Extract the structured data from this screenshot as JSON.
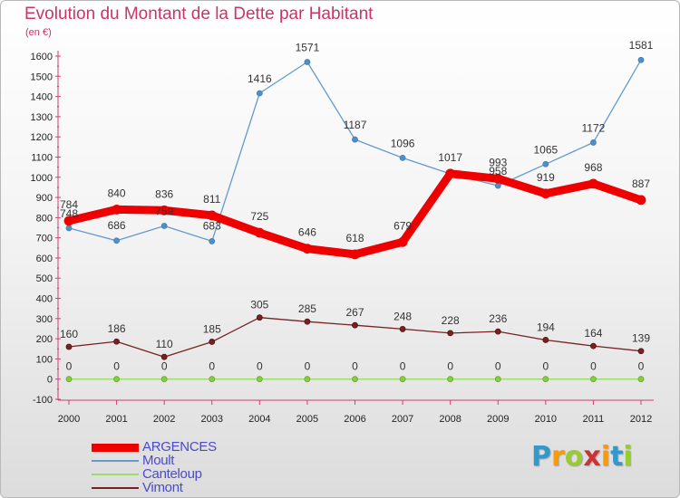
{
  "title": "Evolution du Montant de la Dette par Habitant",
  "unit_label": "(en €)",
  "logo": {
    "text": "Proxiti",
    "letters": [
      {
        "ch": "P",
        "color": "#3399cc"
      },
      {
        "ch": "r",
        "color": "#ff9900"
      },
      {
        "ch": "o",
        "color": "#99cc33"
      },
      {
        "ch": "x",
        "color": "#cc3333"
      },
      {
        "ch": "i",
        "color": "#ff9900"
      },
      {
        "ch": "t",
        "color": "#3399cc"
      },
      {
        "ch": "i",
        "color": "#99cc33"
      }
    ]
  },
  "chart_data": {
    "type": "line",
    "title": "Evolution du Montant de la Dette par Habitant",
    "ylabel": "(en €)",
    "xlabel": "",
    "x": [
      "2000",
      "2001",
      "2002",
      "2003",
      "2004",
      "2005",
      "2006",
      "2007",
      "2008",
      "2009",
      "2010",
      "2011",
      "2012"
    ],
    "ylim": [
      -100,
      1600
    ],
    "yticks": [
      -100,
      0,
      100,
      200,
      300,
      400,
      500,
      600,
      700,
      800,
      900,
      1000,
      1100,
      1200,
      1300,
      1400,
      1500,
      1600
    ],
    "grid": false,
    "legend_position": "bottom-left",
    "series": [
      {
        "name": "ARGENCES",
        "color": "#ee0000",
        "values": [
          784,
          840,
          836,
          811,
          725,
          646,
          618,
          679,
          1018,
          993,
          919,
          968,
          887
        ],
        "labels": [
          "784",
          "840",
          "836",
          "811",
          "725",
          "646",
          "618",
          "679",
          "",
          "993",
          "919",
          "968",
          "887"
        ]
      },
      {
        "name": "Moult",
        "color": "#6699cc",
        "values": [
          748,
          686,
          759,
          683,
          1416,
          1571,
          1187,
          1096,
          1017,
          958,
          1065,
          1172,
          1581
        ],
        "labels": [
          "748",
          "686",
          "759",
          "683",
          "1416",
          "1571",
          "1187",
          "1096",
          "1017",
          "958",
          "1065",
          "1172",
          "1581"
        ]
      },
      {
        "name": "Canteloup",
        "color": "#99dd66",
        "values": [
          0,
          0,
          0,
          0,
          0,
          0,
          0,
          0,
          0,
          0,
          0,
          0,
          0
        ],
        "labels": [
          "0",
          "0",
          "0",
          "0",
          "0",
          "0",
          "0",
          "0",
          "0",
          "0",
          "0",
          "0",
          "0"
        ]
      },
      {
        "name": "Vimont",
        "color": "#772222",
        "values": [
          160,
          186,
          110,
          185,
          305,
          285,
          267,
          248,
          228,
          236,
          194,
          164,
          139
        ],
        "labels": [
          "160",
          "186",
          "110",
          "185",
          "305",
          "285",
          "267",
          "248",
          "228",
          "236",
          "194",
          "164",
          "139"
        ]
      }
    ]
  }
}
